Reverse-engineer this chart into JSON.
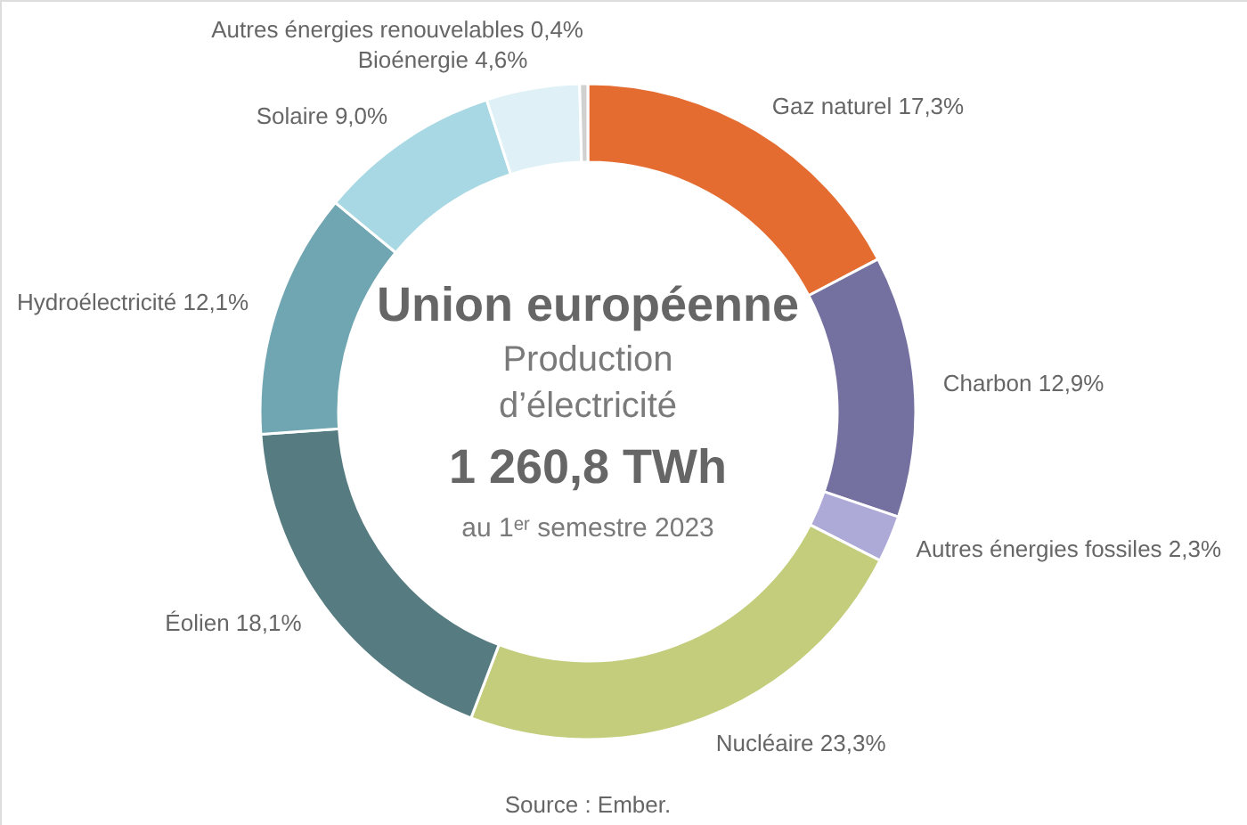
{
  "chart_data": {
    "type": "donut",
    "title": "Union européenne",
    "subtitle": "Production d’électricité",
    "categories": [
      "Gaz naturel",
      "Charbon",
      "Autres énergies fossiles",
      "Nucléaire",
      "Éolien",
      "Hydroélectricité",
      "Solaire",
      "Bioénergie",
      "Autres énergies renouvelables"
    ],
    "values": [
      17.3,
      12.9,
      2.3,
      23.3,
      18.1,
      12.1,
      9.0,
      4.6,
      0.4
    ],
    "colors": [
      "#e46c30",
      "#7471a0",
      "#aeaad8",
      "#c3cd7b",
      "#567b80",
      "#70a5b2",
      "#a8d8e3",
      "#dff1f6",
      "#d0d0d0"
    ],
    "value_labels": [
      "17,3%",
      "12,9%",
      "2,3%",
      "23,3%",
      "18,1%",
      "12,1%",
      "9,0%",
      "4,6%",
      "0,4%"
    ],
    "annotations": [
      "1 260,8 TWh",
      "au 1ᵉʳ semestre 2023",
      "Source : Ember."
    ]
  }
}
